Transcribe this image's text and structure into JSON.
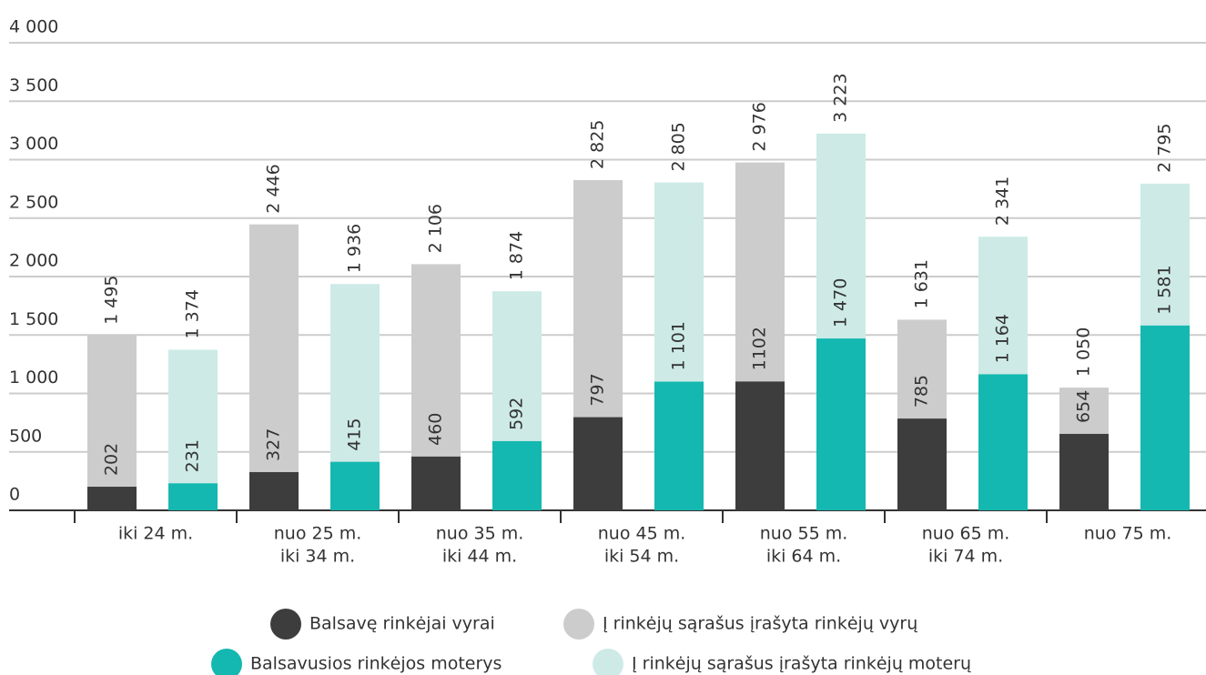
{
  "chart_data": {
    "type": "bar",
    "overlap": true,
    "categories": [
      [
        "iki 24 m."
      ],
      [
        "nuo 25 m.",
        "iki 34 m."
      ],
      [
        "nuo 35 m.",
        "iki 44 m."
      ],
      [
        "nuo 45 m.",
        "iki 54 m."
      ],
      [
        "nuo 55 m.",
        "iki 64 m."
      ],
      [
        "nuo 65 m.",
        "iki 74 m."
      ],
      [
        "nuo 75 m."
      ]
    ],
    "groups": [
      {
        "series": [
          {
            "name": "Į rinkėjų sąrašus įrašyta rinkėjų vyrų",
            "color": "#cccccc",
            "values": [
              1495,
              2446,
              2106,
              2825,
              2976,
              1631,
              1050
            ],
            "value_labels": [
              "1 495",
              "2 446",
              "2 106",
              "2 825",
              "2 976",
              "1 631",
              "1 050"
            ]
          },
          {
            "name": "Balsavę rinkėjai vyrai",
            "color": "#3d3d3d",
            "values": [
              202,
              327,
              460,
              797,
              1102,
              785,
              654
            ]
          }
        ]
      },
      {
        "series": [
          {
            "name": "Į rinkėjų sąrašus įrašyta rinkėjų moterų",
            "color": "#cdeae6",
            "values": [
              1374,
              1936,
              1874,
              2805,
              3223,
              2341,
              2795
            ],
            "value_labels": [
              "1 374",
              "1 936",
              "1 874",
              "2 805",
              "3 223",
              "2 341",
              "2 795"
            ]
          },
          {
            "name": "Balsavusios rinkėjos moterys",
            "color": "#14b8b0",
            "values": [
              231,
              415,
              592,
              1101,
              1470,
              1164,
              1581
            ],
            "value_labels": [
              "231",
              "415",
              "592",
              "1 101",
              "1 470",
              "1 164",
              "1 581"
            ]
          }
        ]
      }
    ],
    "ylim": [
      0,
      4000
    ],
    "yticks": [
      0,
      500,
      {
        "value": 1000,
        "label": "1 000"
      },
      {
        "value": 1500,
        "label": "1 500"
      },
      {
        "value": 2000,
        "label": "2 000"
      },
      {
        "value": 2500,
        "label": "2 500"
      },
      {
        "value": 3000,
        "label": "3 000"
      },
      {
        "value": 3500,
        "label": "3 500"
      },
      {
        "value": 4000,
        "label": "4 000"
      }
    ],
    "grid": true,
    "legend": "bottom"
  }
}
